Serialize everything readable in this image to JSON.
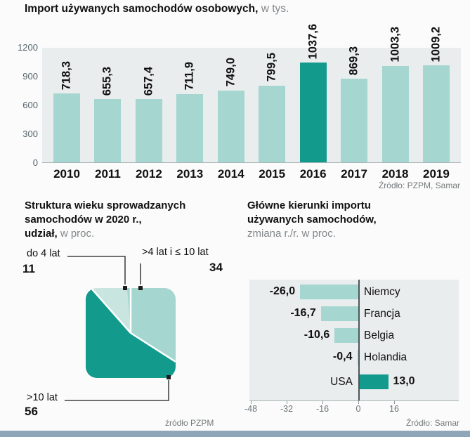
{
  "page": {
    "bg": "#fbfbfb",
    "panel_bg": "#e9edee",
    "light_teal": "#a5d6cf",
    "lighter_teal": "#c9e5e0",
    "dark_teal": "#129a8c",
    "bottom_strip": "#8ea6b8"
  },
  "chart_data": [
    {
      "type": "bar",
      "title_bold": "Import używanych samochodów osobowych,",
      "title_light": " w tys.",
      "categories": [
        "2010",
        "2011",
        "2012",
        "2013",
        "2014",
        "2015",
        "2016",
        "2017",
        "2018",
        "2019"
      ],
      "values": [
        718.3,
        655.3,
        657.4,
        711.9,
        749.0,
        799.5,
        1037.6,
        869.3,
        1003.3,
        1009.2
      ],
      "value_labels": [
        "718,3",
        "655,3",
        "657,4",
        "711,9",
        "749,0",
        "799,5",
        "1037,6",
        "869,3",
        "1003,3",
        "1009,2"
      ],
      "highlight_index": 6,
      "ylim": [
        0,
        1200
      ],
      "yticks": [
        1200,
        900,
        600,
        300,
        0
      ],
      "legend": "none",
      "source": "Źródło: PZPM, Samar"
    },
    {
      "type": "pie",
      "title_bold_lines": [
        "Struktura wieku sprowadzanych",
        "samochodów w 2020 r.,"
      ],
      "title_bold_tail": "udział,",
      "title_light_tail": " w proc.",
      "slices": [
        {
          "label": "do 4 lat",
          "value": 11,
          "color": "#c9e5e0"
        },
        {
          "label": ">4 lat i ≤ 10 lat",
          "value": 34,
          "color": "#a5d6cf"
        },
        {
          "label": ">10 lat",
          "value": 56,
          "color": "#129a8c"
        }
      ],
      "source": "źródło PZPM"
    },
    {
      "type": "bar",
      "orientation": "horizontal",
      "title_bold_lines": [
        "Główne kierunki importu",
        "używanych samochodów,"
      ],
      "subtitle": "zmiana r./r. w proc.",
      "categories": [
        "Niemcy",
        "Francja",
        "Belgia",
        "Holandia",
        "USA"
      ],
      "values": [
        -26.0,
        -16.7,
        -10.6,
        -0.4,
        13.0
      ],
      "value_labels": [
        "-26,0",
        "-16,7",
        "-10,6",
        "-0,4",
        "13,0"
      ],
      "xticks": [
        -48,
        -32,
        -16,
        0,
        16
      ],
      "xlim": [
        -48,
        18
      ],
      "source": "Źródło: Samar"
    }
  ]
}
